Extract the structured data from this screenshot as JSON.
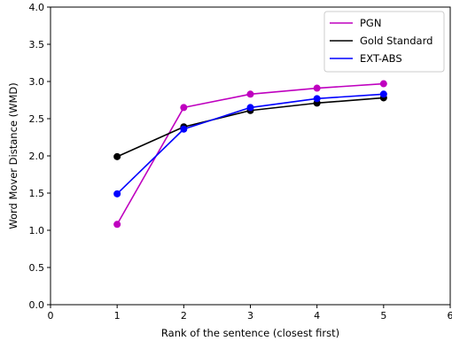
{
  "chart_data": {
    "type": "line",
    "xlabel": "Rank of the sentence (closest first)",
    "ylabel": "Word Mover Distance (WMD)",
    "xlim": [
      0,
      6
    ],
    "ylim": [
      0.0,
      4.0
    ],
    "xticks": [
      "0",
      "1",
      "2",
      "3",
      "4",
      "5",
      "6"
    ],
    "yticks": [
      "0.0",
      "0.5",
      "1.0",
      "1.5",
      "2.0",
      "2.5",
      "3.0",
      "3.5",
      "4.0"
    ],
    "grid": false,
    "legend_position": "top-right",
    "x": [
      1,
      2,
      3,
      4,
      5
    ],
    "series": [
      {
        "name": "PGN",
        "color": "#bf00bf",
        "values": [
          1.08,
          2.65,
          2.83,
          2.91,
          2.97
        ]
      },
      {
        "name": "Gold Standard",
        "color": "#000000",
        "values": [
          1.99,
          2.39,
          2.61,
          2.71,
          2.78
        ]
      },
      {
        "name": "EXT-ABS",
        "color": "#0000ff",
        "values": [
          1.49,
          2.36,
          2.65,
          2.77,
          2.83
        ]
      }
    ]
  }
}
